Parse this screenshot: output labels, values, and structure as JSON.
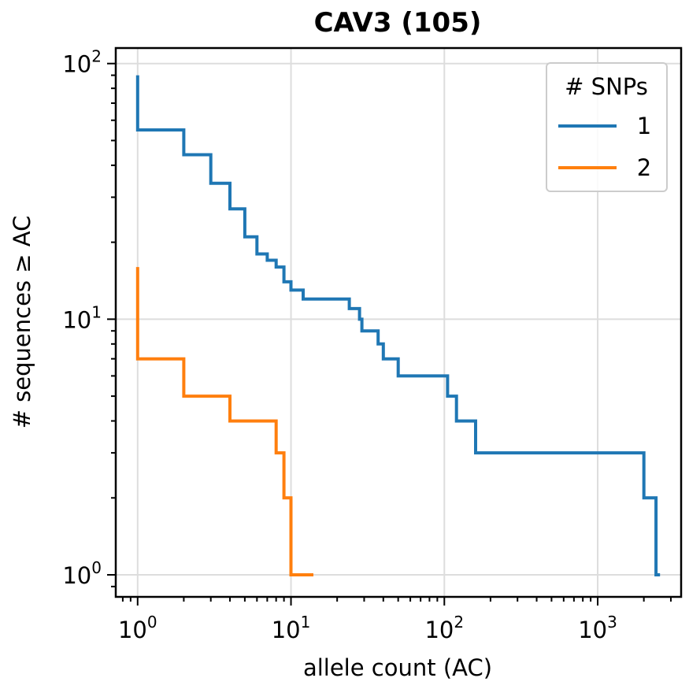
{
  "chart_data": {
    "type": "line",
    "drawstyle": "step",
    "title": "CAV3 (105)",
    "xlabel": "allele count (AC)",
    "ylabel": "# sequences ≥ AC",
    "xscale": "log",
    "yscale": "log",
    "xlim": [
      0.72,
      3500
    ],
    "ylim": [
      0.82,
      115
    ],
    "grid": true,
    "xticks": [
      1,
      10,
      100,
      1000
    ],
    "yticks": [
      1,
      10,
      100
    ],
    "legend": {
      "title": "# SNPs",
      "placement": "top-right"
    },
    "series": [
      {
        "name": "1",
        "color": "#1f77b4",
        "x": [
          1,
          1,
          2,
          3,
          4,
          5,
          6,
          7,
          8,
          9,
          10,
          12,
          24,
          28,
          29,
          37,
          40,
          50,
          105,
          120,
          160,
          2000,
          2400,
          2550
        ],
        "y": [
          90,
          55,
          44,
          34,
          27,
          21,
          18,
          17,
          16,
          14,
          13,
          12,
          11,
          10,
          9,
          8,
          7,
          6,
          5,
          4,
          3,
          2,
          1,
          1
        ]
      },
      {
        "name": "2",
        "color": "#ff7f0e",
        "x": [
          1,
          1,
          2,
          4,
          8,
          9,
          10,
          14
        ],
        "y": [
          16,
          7,
          5,
          4,
          3,
          2,
          1,
          1
        ]
      }
    ]
  }
}
